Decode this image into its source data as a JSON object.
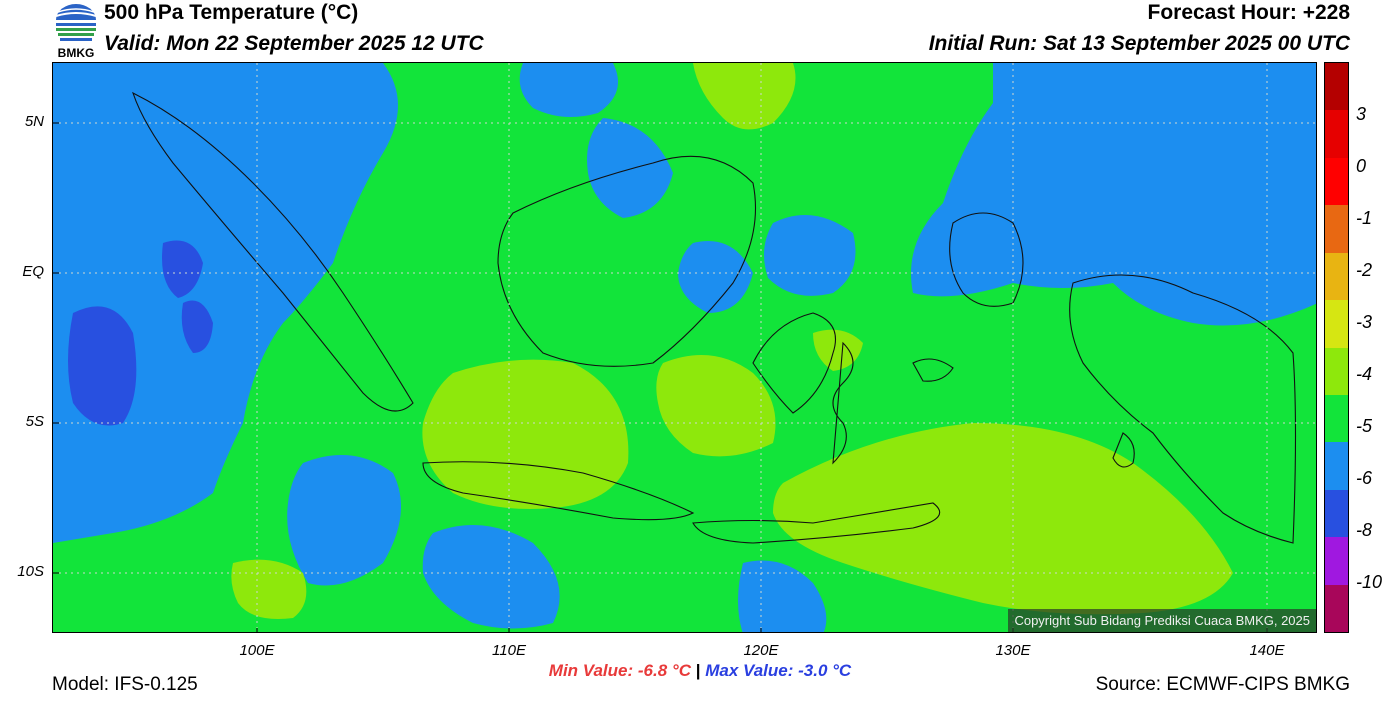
{
  "header": {
    "title": "500 hPa Temperature (°C)",
    "valid": "Valid: Mon 22 September 2025 12 UTC",
    "forecast_hour": "Forecast Hour: +228",
    "initial_run": "Initial Run: Sat 13 September 2025 00 UTC"
  },
  "logo": {
    "text": "BMKG"
  },
  "map": {
    "latitude_labels": [
      "5N",
      "EQ",
      "5S",
      "10S"
    ],
    "longitude_labels": [
      "100E",
      "110E",
      "120E",
      "130E",
      "140E"
    ],
    "copyright": "Copyright Sub Bidang Prediksi Cuaca BMKG, 2025"
  },
  "colorbar": {
    "labels": [
      "3",
      "0",
      "-1",
      "-2",
      "-3",
      "-4",
      "-5",
      "-6",
      "-8",
      "-10"
    ],
    "colors": [
      "#b40000",
      "#e60000",
      "#ff0000",
      "#e86812",
      "#e8b412",
      "#d6e612",
      "#8ee80c",
      "#12e43a",
      "#1c8ef0",
      "#2850e0",
      "#a018e0",
      "#a8065a"
    ]
  },
  "stats": {
    "min_value": "Min Value: -6.8 °C",
    "separator": "|",
    "max_value": "Max Value: -3.0 °C"
  },
  "footer": {
    "model": "Model: IFS-0.125",
    "source": "Source: ECMWF-CIPS BMKG"
  }
}
